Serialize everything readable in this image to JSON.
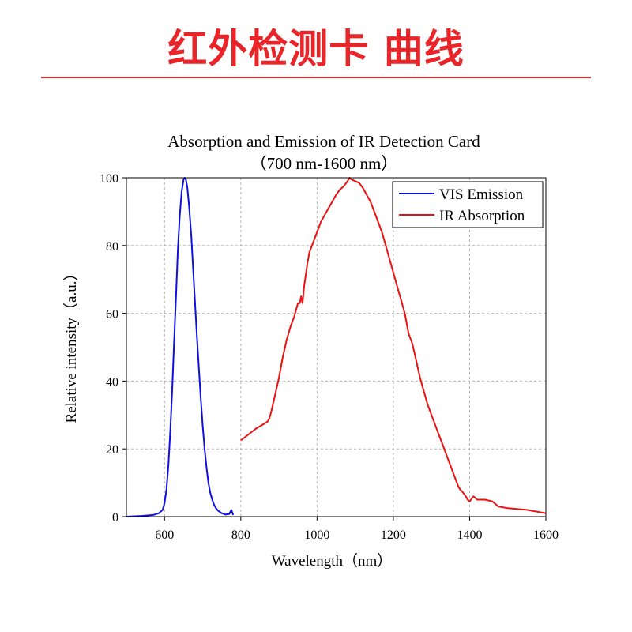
{
  "banner": {
    "title": "红外检测卡 曲线",
    "color": "#e8262a"
  },
  "chart_data": {
    "type": "line",
    "title": "Absorption and Emission of IR Detection Card",
    "subtitle": "（700 nm-1600 nm）",
    "xlabel": "Wavelength（nm）",
    "ylabel": "Relative intensity（a.u.）",
    "xlim": [
      500,
      1600
    ],
    "ylim": [
      0,
      100
    ],
    "xticks": [
      600,
      800,
      1000,
      1200,
      1400,
      1600
    ],
    "yticks": [
      0,
      20,
      40,
      60,
      80,
      100
    ],
    "grid": true,
    "legend_position": "top-right",
    "series": [
      {
        "name": "VIS Emission",
        "color": "#1010e0",
        "x": [
          500,
          540,
          570,
          585,
          595,
          600,
          605,
          610,
          615,
          620,
          625,
          630,
          635,
          640,
          645,
          650,
          653,
          656,
          660,
          665,
          670,
          675,
          680,
          685,
          690,
          695,
          700,
          705,
          710,
          715,
          720,
          725,
          730,
          735,
          740,
          750,
          760,
          770,
          775,
          780
        ],
        "y": [
          0,
          0.2,
          0.5,
          1,
          2,
          4,
          8,
          15,
          25,
          37,
          51,
          65,
          79,
          89,
          96,
          99.5,
          100,
          99.5,
          97,
          91,
          83,
          73,
          63,
          53,
          44,
          35,
          27,
          20,
          14.5,
          10,
          7,
          5,
          3.5,
          2.5,
          1.8,
          1,
          0.6,
          0.8,
          2,
          0.5
        ]
      },
      {
        "name": "IR Absorption",
        "color": "#ee1111",
        "x": [
          800,
          840,
          870,
          875,
          880,
          890,
          900,
          910,
          920,
          930,
          940,
          950,
          955,
          958,
          962,
          966,
          970,
          975,
          980,
          990,
          1000,
          1010,
          1020,
          1030,
          1040,
          1050,
          1060,
          1070,
          1080,
          1085,
          1090,
          1100,
          1110,
          1120,
          1130,
          1140,
          1150,
          1160,
          1170,
          1180,
          1190,
          1200,
          1210,
          1220,
          1230,
          1240,
          1250,
          1260,
          1270,
          1280,
          1290,
          1300,
          1310,
          1320,
          1330,
          1340,
          1350,
          1360,
          1370,
          1375,
          1380,
          1390,
          1395,
          1400,
          1410,
          1420,
          1440,
          1460,
          1475,
          1500,
          1550,
          1600
        ],
        "y": [
          22.5,
          26,
          28,
          29,
          31,
          36,
          41,
          47,
          52,
          56,
          59,
          63,
          63,
          65,
          63,
          68,
          71,
          75,
          78,
          81,
          84,
          87,
          89,
          91,
          93,
          95,
          96.5,
          97.5,
          99,
          100,
          99.5,
          99,
          98.5,
          97,
          95,
          93,
          90,
          87,
          84,
          80,
          76,
          72,
          68,
          64,
          60,
          54,
          51,
          46,
          41,
          37,
          33,
          30,
          27,
          24,
          21,
          18,
          15,
          12,
          9,
          8,
          7.5,
          6,
          5,
          4.5,
          6,
          5,
          5,
          4.5,
          3,
          2.5,
          2,
          1
        ]
      }
    ]
  }
}
